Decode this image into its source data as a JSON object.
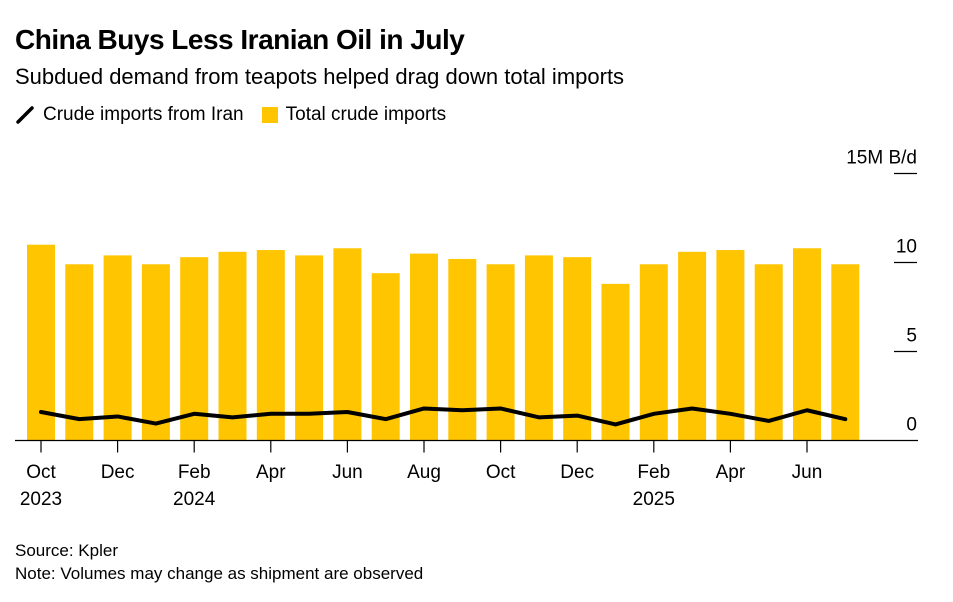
{
  "title": "China Buys Less Iranian Oil in July",
  "subtitle": "Subdued demand from teapots helped drag down total imports",
  "legend": [
    {
      "label": "Crude imports from Iran",
      "color": "#000000",
      "kind": "line"
    },
    {
      "label": "Total crude imports",
      "color": "#FFC500",
      "kind": "bar"
    }
  ],
  "source": "Source: Kpler",
  "note": "Note: Volumes may change as shipment are observed",
  "chart_data": {
    "type": "bar+line",
    "categories": [
      "Oct 2023",
      "Nov 2023",
      "Dec 2023",
      "Jan 2024",
      "Feb 2024",
      "Mar 2024",
      "Apr 2024",
      "May 2024",
      "Jun 2024",
      "Jul 2024",
      "Aug 2024",
      "Sep 2024",
      "Oct 2024",
      "Nov 2024",
      "Dec 2024",
      "Jan 2025",
      "Feb 2025",
      "Mar 2025",
      "Apr 2025",
      "May 2025",
      "Jun 2025",
      "Jul 2025"
    ],
    "series": [
      {
        "name": "Total crude imports",
        "type": "bar",
        "color": "#FFC500",
        "values": [
          11.0,
          9.9,
          10.4,
          9.9,
          10.3,
          10.6,
          10.7,
          10.4,
          10.8,
          9.4,
          10.5,
          10.2,
          9.9,
          10.4,
          10.3,
          8.8,
          9.9,
          10.6,
          10.7,
          9.9,
          10.8,
          9.9
        ]
      },
      {
        "name": "Crude imports from Iran",
        "type": "line",
        "color": "#000000",
        "values": [
          1.6,
          1.2,
          1.35,
          0.95,
          1.5,
          1.3,
          1.5,
          1.5,
          1.6,
          1.2,
          1.8,
          1.7,
          1.8,
          1.3,
          1.4,
          0.9,
          1.5,
          1.8,
          1.5,
          1.1,
          1.7,
          1.2
        ]
      }
    ],
    "y_unit": "15M B/d",
    "yticks": [
      {
        "value": 0,
        "label": "0"
      },
      {
        "value": 5,
        "label": "5"
      },
      {
        "value": 10,
        "label": "10"
      },
      {
        "value": 15,
        "label": "15M B/d"
      }
    ],
    "ylim": [
      0,
      15
    ],
    "xticks": [
      {
        "index": 0,
        "label": "Oct",
        "sub": "2023"
      },
      {
        "index": 2,
        "label": "Dec"
      },
      {
        "index": 4,
        "label": "Feb",
        "sub": "2024"
      },
      {
        "index": 6,
        "label": "Apr"
      },
      {
        "index": 8,
        "label": "Jun"
      },
      {
        "index": 10,
        "label": "Aug"
      },
      {
        "index": 12,
        "label": "Oct"
      },
      {
        "index": 14,
        "label": "Dec"
      },
      {
        "index": 16,
        "label": "Feb",
        "sub": "2025"
      },
      {
        "index": 18,
        "label": "Apr"
      },
      {
        "index": 20,
        "label": "Jun"
      }
    ],
    "y_axis_position": "right",
    "grid": false,
    "legend_position": "top-left"
  }
}
